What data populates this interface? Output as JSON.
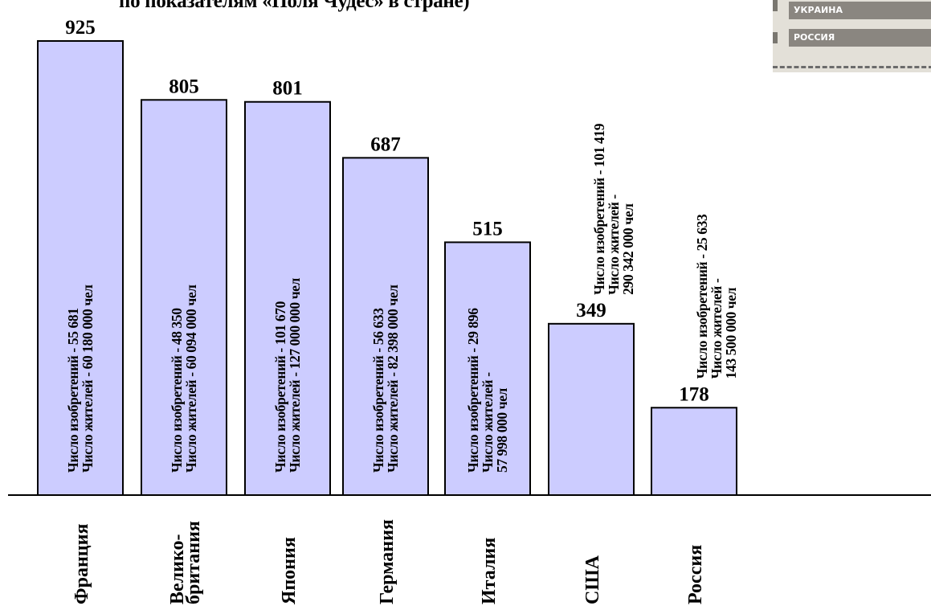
{
  "title": "по показателям «Поля Чудес» в стране)",
  "stamp": {
    "items": [
      "УКРАИНА",
      "РОССИЯ"
    ]
  },
  "colors": {
    "bar_fill": "#ccccff",
    "bar_stroke": "#000000"
  },
  "chart_data": {
    "type": "bar",
    "title": "по показателям «Поля Чудес» в стране)",
    "categories": [
      "Франция",
      "Велико-британия",
      "Япония",
      "Германия",
      "Италия",
      "США",
      "Россия"
    ],
    "category_lines": [
      [
        "Франция"
      ],
      [
        "Велико-",
        "британия"
      ],
      [
        "Япония"
      ],
      [
        "Германия"
      ],
      [
        "Италия"
      ],
      [
        "США"
      ],
      [
        "Россия"
      ]
    ],
    "values": [
      925,
      805,
      801,
      687,
      515,
      349,
      178
    ],
    "value_labels": [
      "925",
      "805",
      "801",
      "687",
      "515",
      "349",
      "178"
    ],
    "annotations": [
      [
        "Число изобретений - 55 681",
        "Число жителей  - 60 180 000 чел"
      ],
      [
        "Число изобретений - 48 350",
        "Число жителей  - 60 094 000 чел"
      ],
      [
        "Число изобретений - 101 670",
        "Число жителей  - 127 000 000 чел"
      ],
      [
        "Число изобретений - 56 633",
        "Число жителей  - 82 398 000 чел"
      ],
      [
        "Число изобретений - 29 896",
        "Число жителей -",
        "57 998 000 чел"
      ],
      [
        "Число изобретений - 101 419",
        "Число жителей -",
        "290 342 000 чел"
      ],
      [
        "Число изобретений - 25 633",
        "Число жителей -",
        "143 500 000 чел"
      ]
    ],
    "annotation_placement": [
      "inside",
      "inside",
      "inside",
      "inside",
      "inside",
      "above",
      "above"
    ],
    "ylim": [
      0,
      925
    ],
    "grid": false,
    "legend": "none"
  }
}
